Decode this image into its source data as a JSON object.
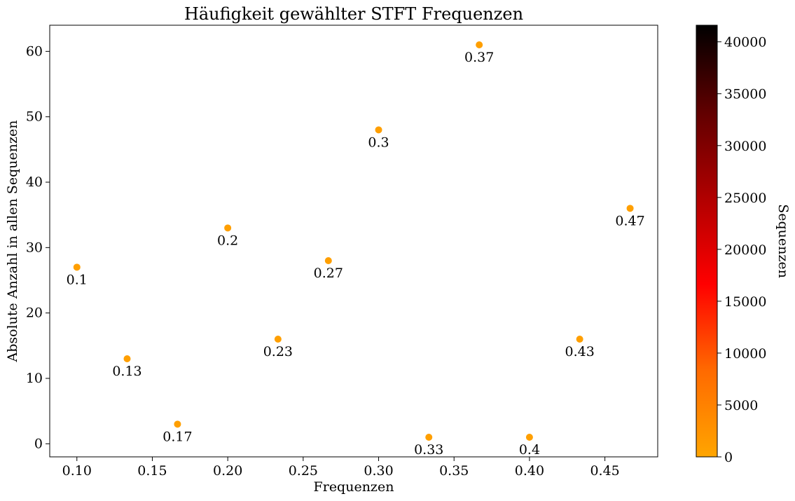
{
  "chart_data": {
    "type": "scatter",
    "title": "Häufigkeit gewählter STFT Frequenzen",
    "xlabel": "Frequenzen",
    "ylabel": "Absolute Anzahl in allen Sequenzen",
    "xlim": [
      0.082,
      0.485
    ],
    "ylim": [
      -2,
      64
    ],
    "x_ticks": [
      0.1,
      0.15,
      0.2,
      0.25,
      0.3,
      0.35,
      0.4,
      0.45
    ],
    "x_tick_labels": [
      "0.10",
      "0.15",
      "0.20",
      "0.25",
      "0.30",
      "0.35",
      "0.40",
      "0.45"
    ],
    "y_ticks": [
      0,
      10,
      20,
      30,
      40,
      50,
      60
    ],
    "y_tick_labels": [
      "0",
      "10",
      "20",
      "30",
      "40",
      "50",
      "60"
    ],
    "grid": false,
    "marker_color": "#ff9f00",
    "points": [
      {
        "x": 0.1,
        "y": 27,
        "label": "0.1"
      },
      {
        "x": 0.1333,
        "y": 13,
        "label": "0.13"
      },
      {
        "x": 0.1667,
        "y": 3,
        "label": "0.17"
      },
      {
        "x": 0.2,
        "y": 33,
        "label": "0.2"
      },
      {
        "x": 0.2333,
        "y": 16,
        "label": "0.23"
      },
      {
        "x": 0.2667,
        "y": 28,
        "label": "0.27"
      },
      {
        "x": 0.3,
        "y": 48,
        "label": "0.3"
      },
      {
        "x": 0.3333,
        "y": 1,
        "label": "0.33"
      },
      {
        "x": 0.3667,
        "y": 61,
        "label": "0.37"
      },
      {
        "x": 0.4,
        "y": 1,
        "label": "0.4"
      },
      {
        "x": 0.4333,
        "y": 16,
        "label": "0.43"
      },
      {
        "x": 0.4667,
        "y": 36,
        "label": "0.47"
      }
    ],
    "colorbar": {
      "label": "Sequenzen",
      "range": [
        0,
        41600
      ],
      "ticks": [
        0,
        5000,
        10000,
        15000,
        20000,
        25000,
        30000,
        35000,
        40000
      ],
      "tick_labels": [
        "0",
        "5000",
        "10000",
        "15000",
        "20000",
        "25000",
        "30000",
        "35000",
        "40000"
      ],
      "colormap": [
        "#ffa500",
        "#ff6a00",
        "#ff0000",
        "#b00000",
        "#600000",
        "#000000"
      ]
    }
  }
}
